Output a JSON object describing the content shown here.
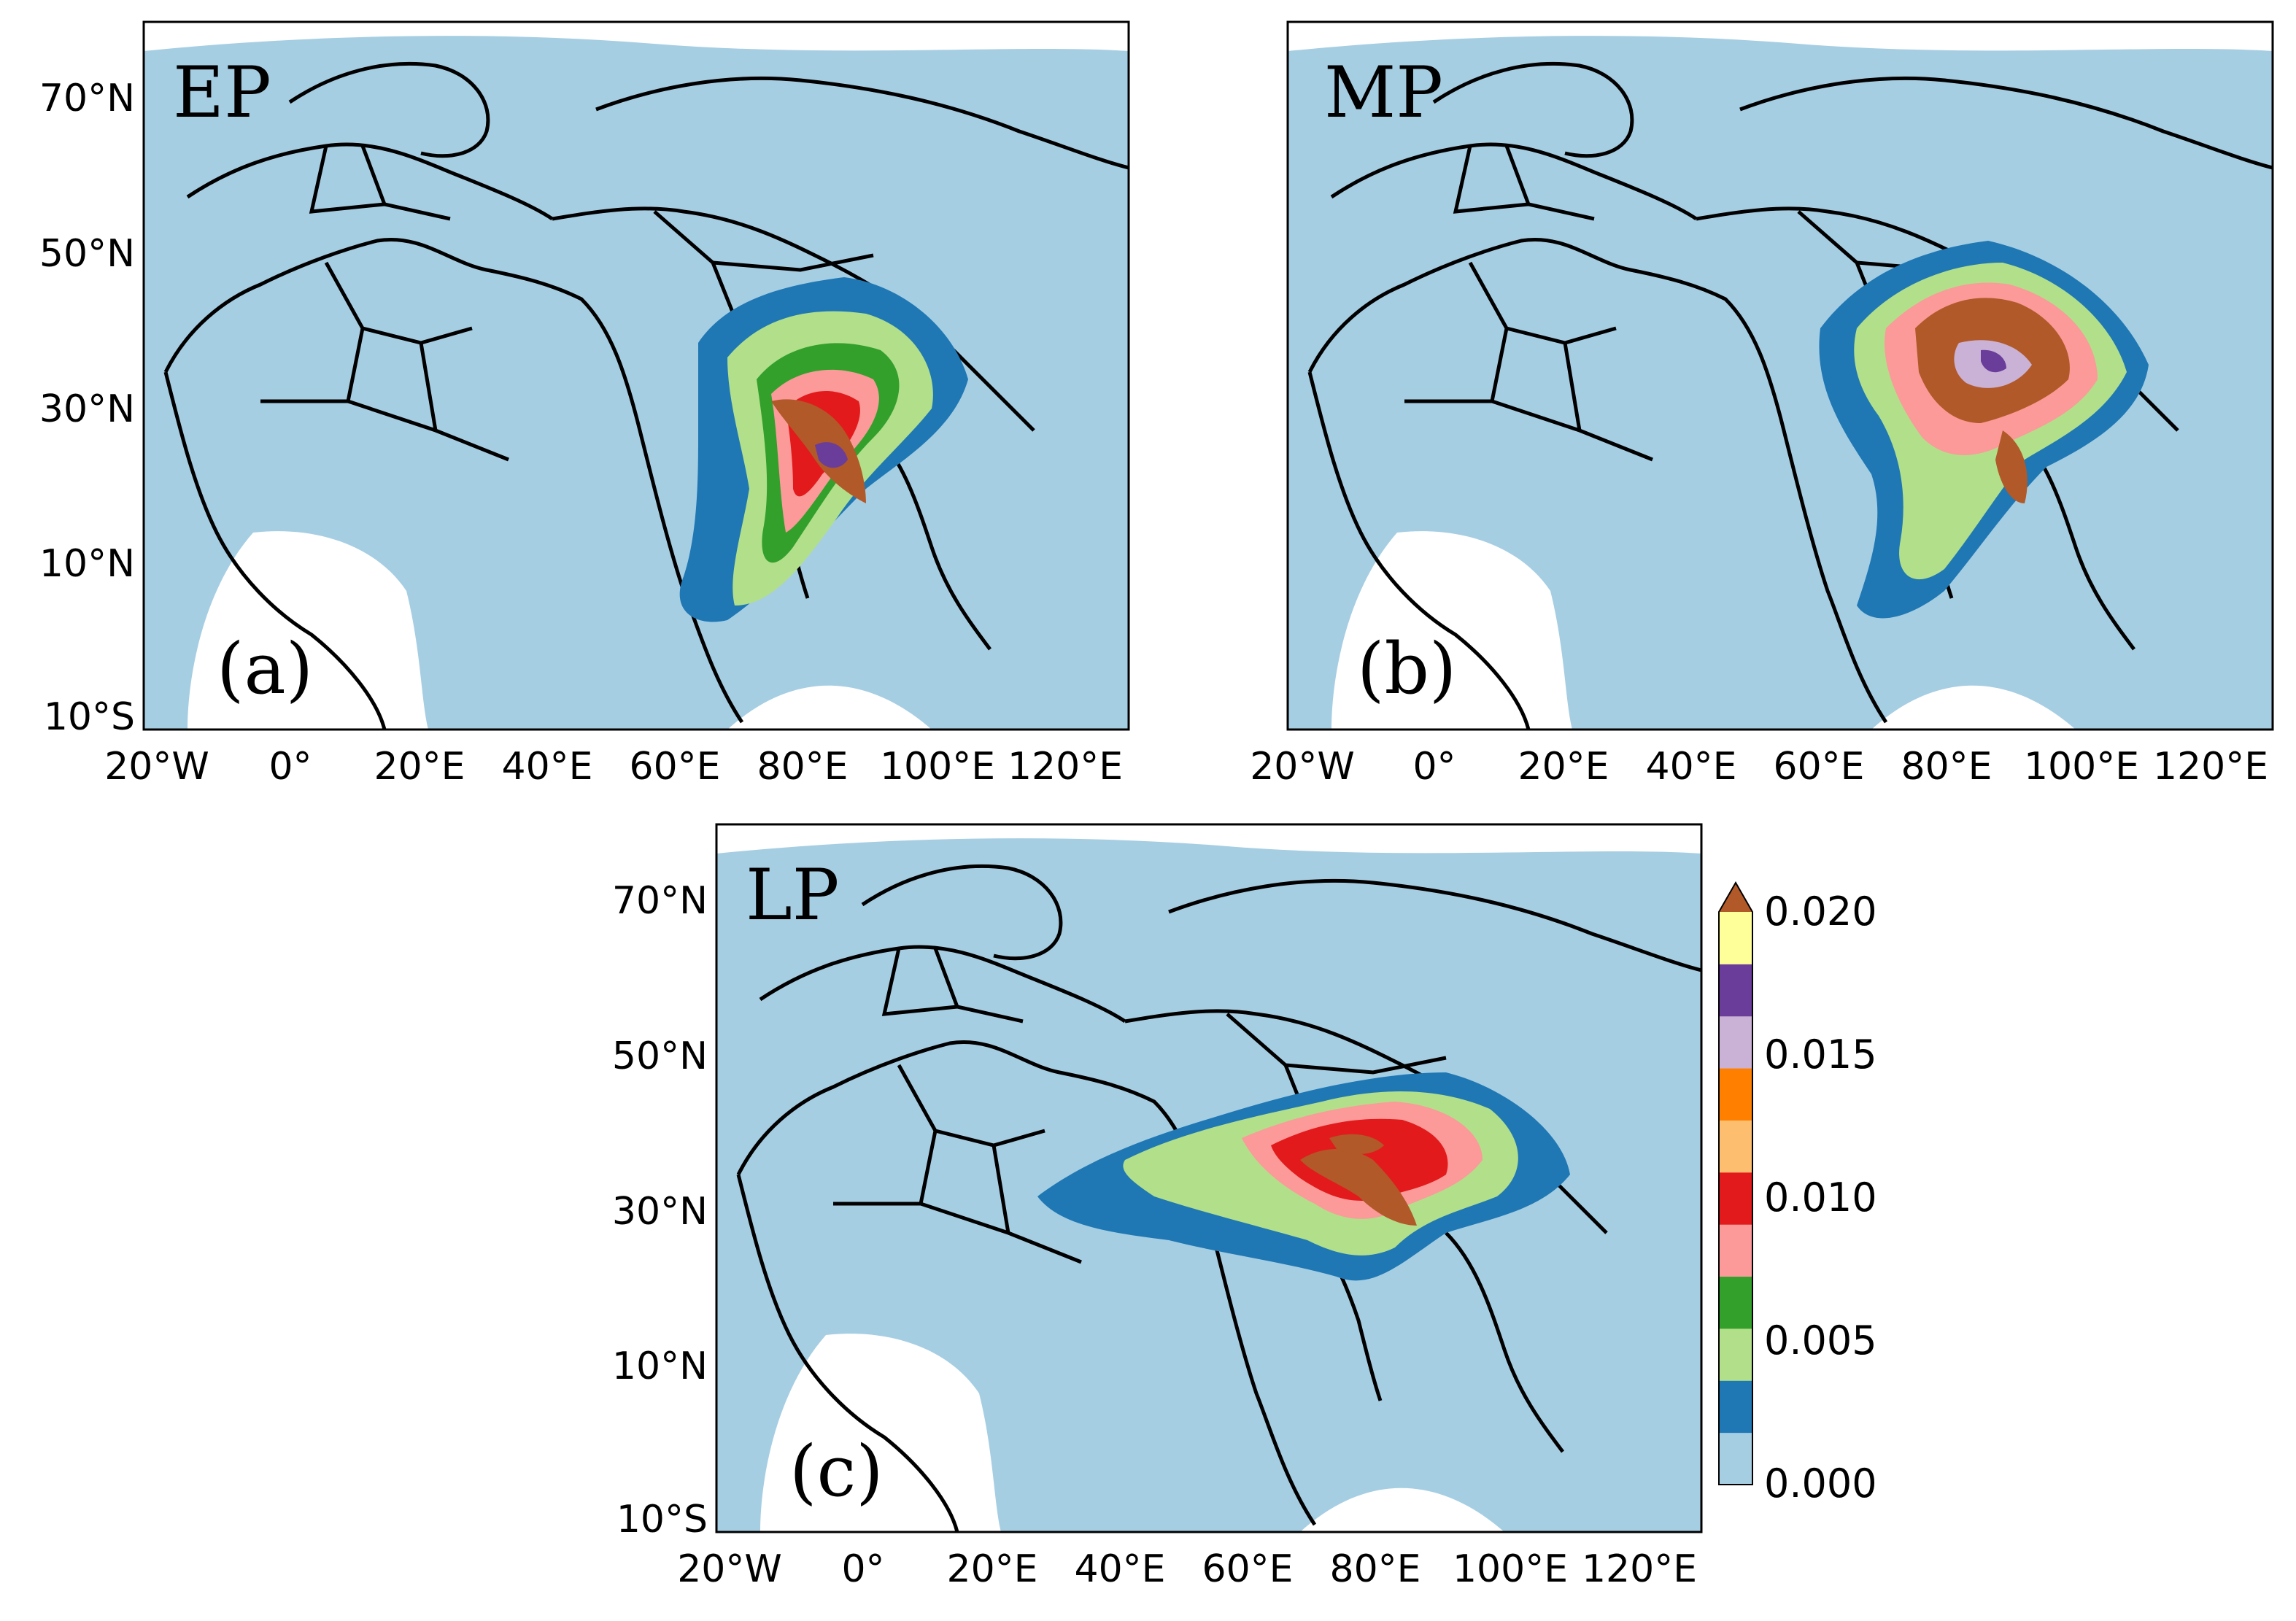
{
  "panels": [
    {
      "id": "a",
      "period": "EP",
      "tag": "(a)"
    },
    {
      "id": "b",
      "period": "MP",
      "tag": "(b)"
    },
    {
      "id": "c",
      "period": "LP",
      "tag": "(c)"
    }
  ],
  "axes": {
    "lon_ticks": [
      "20°W",
      "0°",
      "20°E",
      "40°E",
      "60°E",
      "80°E",
      "100°E",
      "120°E"
    ],
    "lat_ticks": [
      "70°N",
      "50°N",
      "30°N",
      "10°N",
      "10°S"
    ]
  },
  "colorbar": {
    "ticks": [
      "0.020",
      "0.015",
      "0.010",
      "0.005",
      "0.000"
    ],
    "levels": [
      "#a6cee3",
      "#1f78b4",
      "#b2df8a",
      "#33a02c",
      "#fb9a99",
      "#e31a1c",
      "#fdbf6f",
      "#ff7f00",
      "#cab2d6",
      "#6a3d9a",
      "#ffff99"
    ],
    "extend_color": "#b15928"
  }
}
